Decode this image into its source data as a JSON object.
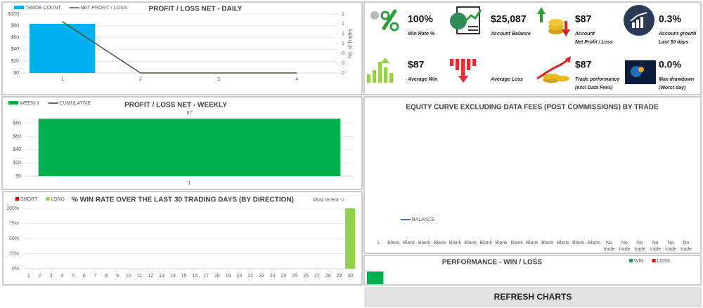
{
  "chart_data": [
    {
      "type": "bar",
      "title": "PROFIT / LOSS NET - DAILY",
      "categories": [
        "1",
        "2",
        "3",
        "4"
      ],
      "series": [
        {
          "name": "TRADE COUNT",
          "color": "#00b0f0",
          "type": "bar",
          "axis": "y2",
          "values": [
            1,
            0,
            0,
            0
          ]
        },
        {
          "name": "NET PROFIT / LOSS",
          "color": "#4d4d3b",
          "type": "line",
          "values": [
            87,
            0,
            0,
            0
          ]
        }
      ],
      "ylim": [
        0,
        100
      ],
      "yticks": [
        {
          "value": 0,
          "label": "$0"
        },
        {
          "value": 20,
          "label": "$20"
        },
        {
          "value": 40,
          "label": "$40"
        },
        {
          "value": 60,
          "label": "$60"
        },
        {
          "value": 80,
          "label": "$80"
        },
        {
          "value": 100,
          "label": "$100"
        }
      ],
      "y2lim": [
        0,
        1.2
      ],
      "y2ticks": [
        0,
        {
          "value": 0.2,
          "label": "0"
        },
        {
          "value": 0.4,
          "label": "0"
        },
        {
          "value": 0.6,
          "label": "1"
        },
        {
          "value": 0.8,
          "label": "1"
        },
        1,
        {
          "value": 1.2,
          "label": "1"
        }
      ],
      "y2label": "No. of Trades",
      "grid": true
    },
    {
      "type": "bar",
      "title": "PROFIT / LOSS NET - WEEKLY",
      "categories": [
        "1"
      ],
      "series": [
        {
          "name": "WEEKLY",
          "color": "#00b050",
          "type": "bar",
          "values": [
            87
          ],
          "data_labels": true
        },
        {
          "name": "CUMULATIVE",
          "color": "#1f3864",
          "type": "line",
          "values": [
            87
          ]
        }
      ],
      "ylim": [
        0,
        100
      ],
      "yticks": [
        {
          "value": 0,
          "label": "$0"
        },
        {
          "value": 20,
          "label": "$20"
        },
        {
          "value": 40,
          "label": "$40"
        },
        {
          "value": 60,
          "label": "$60"
        },
        {
          "value": 80,
          "label": "$80"
        }
      ],
      "grid": true
    },
    {
      "type": "bar",
      "title": "% WIN RATE OVER THE LAST 30 TRADING DAYS (BY DIRECTION)",
      "annotation": "Most recent ->",
      "stacked": true,
      "categories": [
        "1",
        "2",
        "3",
        "4",
        "5",
        "6",
        "7",
        "8",
        "9",
        "10",
        "11",
        "12",
        "13",
        "14",
        "15",
        "16",
        "17",
        "18",
        "19",
        "20",
        "21",
        "22",
        "23",
        "24",
        "25",
        "26",
        "27",
        "28",
        "29",
        "30"
      ],
      "series": [
        {
          "name": "SHORT",
          "color": "#c00000",
          "type": "bar",
          "values": [
            0,
            0,
            0,
            0,
            0,
            0,
            0,
            0,
            0,
            0,
            0,
            0,
            0,
            0,
            0,
            0,
            0,
            0,
            0,
            0,
            0,
            0,
            0,
            0,
            0,
            0,
            0,
            0,
            0,
            0
          ]
        },
        {
          "name": "LONG",
          "color": "#92d050",
          "type": "bar",
          "values": [
            0,
            0,
            0,
            0,
            0,
            0,
            0,
            0,
            0,
            0,
            0,
            0,
            0,
            0,
            0,
            0,
            0,
            0,
            0,
            0,
            0,
            0,
            0,
            0,
            0,
            0,
            0,
            0,
            0,
            100
          ]
        }
      ],
      "ylim": [
        0,
        100
      ],
      "yticks": [
        {
          "value": 0,
          "label": "0%"
        },
        {
          "value": 25,
          "label": "25%"
        },
        {
          "value": 50,
          "label": "50%"
        },
        {
          "value": 75,
          "label": "75%"
        },
        {
          "value": 100,
          "label": "100%"
        }
      ],
      "grid": true
    },
    {
      "type": "line",
      "title": "EQUITY CURVE EXCLUDING DATA FEES (POST COMMISSIONS) BY TRADE",
      "categories": [
        "1",
        "Blank",
        "Blank",
        "Blank",
        "Blank",
        "Blank",
        "Blank",
        "Blank",
        "Blank",
        "Blank",
        "Blank",
        "Blank",
        "Blank",
        "Blank",
        "Blank",
        "No trade",
        "No trade",
        "No trade",
        "No trade",
        "No trade",
        "No trade"
      ],
      "series": [
        {
          "name": "BALANCE",
          "color": "#1f3864",
          "type": "line",
          "values": [
            null,
            null,
            null,
            null,
            null,
            null,
            null,
            null,
            null,
            null,
            null,
            null,
            null,
            null,
            null,
            null,
            null,
            null,
            null,
            null,
            null
          ]
        }
      ]
    },
    {
      "type": "bar",
      "orientation": "horizontal",
      "title": "PERFORMANCE - WIN / LOSS",
      "categories": [
        null
      ],
      "series": [
        {
          "name": "WIN",
          "color": "#00b050",
          "type": "bar",
          "values": [
            1
          ]
        },
        {
          "name": "LOSS",
          "color": "#ff0000",
          "type": "bar",
          "values": [
            0
          ]
        }
      ],
      "xlim": [
        0,
        20
      ]
    }
  ],
  "kpis": [
    {
      "value": "100%",
      "label": [
        "Win Rate %"
      ]
    },
    {
      "value": "$25,087",
      "label": [
        "Account Balance"
      ]
    },
    {
      "value": "$87",
      "label": [
        "Account",
        "Net Profit / Loss"
      ]
    },
    {
      "value": "0.3%",
      "label": [
        "Account growth",
        "Last 30 days"
      ]
    },
    {
      "value": "$87",
      "label": [
        "Average Win"
      ]
    },
    {
      "label": [
        "Average Loss"
      ]
    },
    {
      "value": "$87",
      "label": [
        "Trade performance",
        "(excl Data Fees)"
      ]
    },
    {
      "value": "0.0%",
      "label": [
        "Max drawdown",
        "(Worst day)"
      ]
    }
  ],
  "button": "REFRESH CHARTS"
}
